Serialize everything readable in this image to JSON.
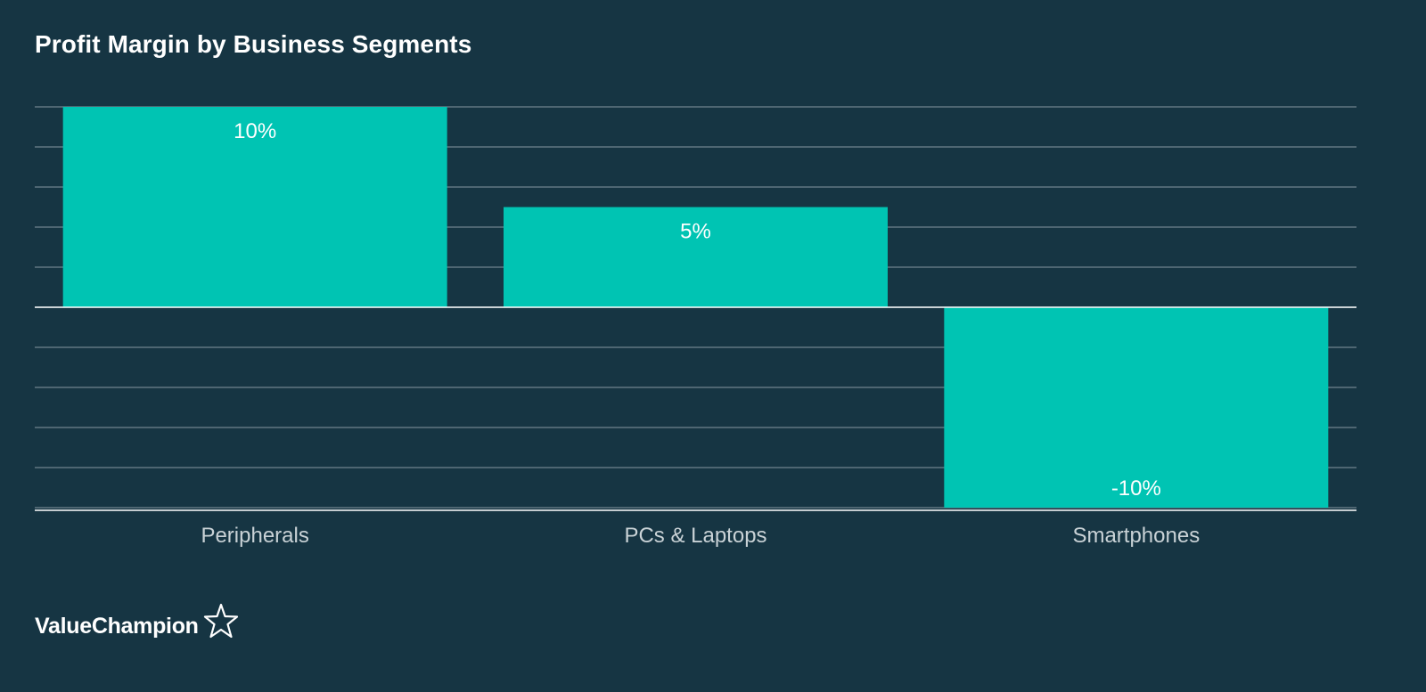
{
  "header": {
    "title": "Profit Margin by Business Segments"
  },
  "brand": {
    "name": "ValueChampion",
    "icon": "star-outline-icon"
  },
  "colors": {
    "background": "#163543",
    "bar": "#00c4b3",
    "gridline": "#6f858e",
    "baseline": "#ffffff",
    "tick_label": "#c9d2d6",
    "value_label": "#ffffff"
  },
  "chart_data": {
    "type": "bar",
    "title": "Profit Margin by Business Segments",
    "categories": [
      "Peripherals",
      "PCs & Laptops",
      "Smartphones"
    ],
    "values": [
      10,
      5,
      -10
    ],
    "value_labels": [
      "10%",
      "5%",
      "-10%"
    ],
    "xlabel": "",
    "ylabel": "",
    "ylim": [
      -10,
      10
    ],
    "grid": true,
    "legend": "none"
  }
}
